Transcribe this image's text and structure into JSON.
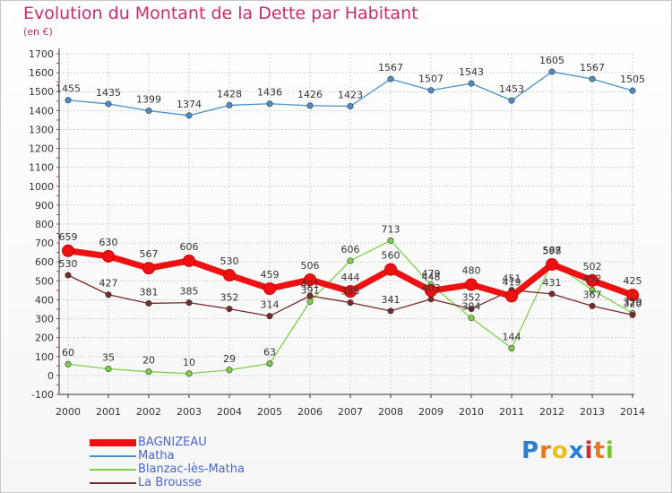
{
  "chart_data": {
    "type": "line",
    "title": "Evolution du Montant de la Dette par Habitant",
    "subtitle": "(en €)",
    "x": [
      "2000",
      "2001",
      "2002",
      "2003",
      "2004",
      "2005",
      "2006",
      "2007",
      "2008",
      "2009",
      "2010",
      "2011",
      "2012",
      "2013",
      "2014"
    ],
    "ylim": [
      -100,
      1700
    ],
    "yticks": [
      -100,
      0,
      100,
      200,
      300,
      400,
      500,
      600,
      700,
      800,
      900,
      1000,
      1100,
      1200,
      1300,
      1400,
      1500,
      1600,
      1700
    ],
    "grid": true,
    "legend_position": "bottom",
    "series": [
      {
        "name": "Matha",
        "color": "#4a90c8",
        "values": [
          1455,
          1435,
          1399,
          1374,
          1428,
          1436,
          1426,
          1423,
          1567,
          1507,
          1543,
          1453,
          1605,
          1567,
          1505
        ]
      },
      {
        "name": "Blanzac-lès-Matha",
        "color": "#7cd04a",
        "values": [
          60,
          35,
          20,
          10,
          29,
          63,
          391,
          606,
          713,
          479,
          304,
          144,
          598,
          452,
          329
        ]
      },
      {
        "name": "La Brousse",
        "color": "#7a2a2a",
        "values": [
          530,
          427,
          381,
          385,
          352,
          314,
          421,
          385,
          341,
          403,
          352,
          451,
          431,
          367,
          320
        ]
      },
      {
        "name": "BAGNIZEAU",
        "color": "#ee1111",
        "values": [
          659,
          630,
          567,
          606,
          530,
          459,
          506,
          444,
          560,
          448,
          480,
          419,
          587,
          502,
          425
        ]
      }
    ]
  },
  "legend": [
    {
      "label": "BAGNIZEAU",
      "color": "#ee1111",
      "thickness": 8
    },
    {
      "label": "Matha",
      "color": "#4a90c8",
      "thickness": 2
    },
    {
      "label": "Blanzac-lès-Matha",
      "color": "#7cd04a",
      "thickness": 2
    },
    {
      "label": "La Brousse",
      "color": "#7a2a2a",
      "thickness": 2
    }
  ],
  "logo": {
    "letters": [
      "P",
      "r",
      "o",
      "x",
      "i",
      "t",
      "i"
    ],
    "colors": [
      "#2a7fd0",
      "#e8781a",
      "#e8c01a",
      "#2a7fd0",
      "#d02a2a",
      "#e8781a",
      "#7cc03a"
    ]
  }
}
